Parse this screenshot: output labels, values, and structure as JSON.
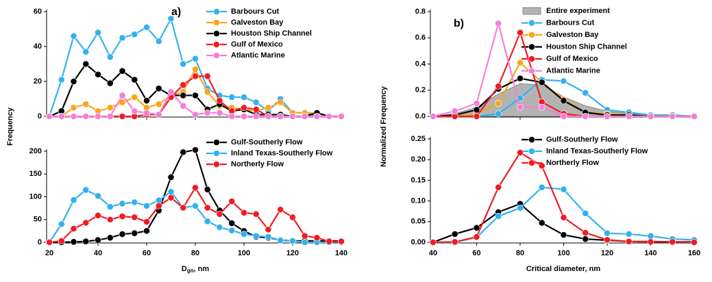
{
  "chart_data": [
    {
      "type": "line",
      "panel_label": "a)",
      "y_label": "Frequency",
      "x": [
        20,
        25,
        30,
        35,
        40,
        45,
        50,
        55,
        60,
        65,
        70,
        75,
        80,
        85,
        90,
        95,
        100,
        105,
        110,
        115,
        120,
        125,
        130,
        135,
        140
      ],
      "xlim": [
        20,
        140
      ],
      "xticks": [
        20,
        40,
        60,
        80,
        100,
        120,
        140
      ],
      "ylim": [
        0,
        60
      ],
      "yticks": [
        0,
        20,
        40,
        60
      ],
      "legend": "upper right",
      "series": [
        {
          "name": "Barbours Cut",
          "color": "#33b1ec",
          "values": [
            0,
            21,
            46,
            37,
            48,
            34,
            45,
            47,
            51,
            43,
            56,
            30,
            33,
            16,
            12,
            11,
            11,
            8,
            3,
            10,
            2,
            2,
            0,
            0,
            0
          ]
        },
        {
          "name": "Galveston Bay",
          "color": "#f9a51a",
          "values": [
            0,
            0,
            5,
            7,
            3,
            5,
            8,
            11,
            5,
            7,
            12,
            14,
            27,
            14,
            6,
            5,
            4,
            3,
            5,
            8,
            2,
            2,
            2,
            0,
            0
          ]
        },
        {
          "name": "Houston Ship Channel",
          "color": "#000000",
          "values": [
            0,
            3,
            20,
            30,
            24,
            19,
            26,
            21,
            9,
            16,
            12,
            12,
            12,
            4,
            7,
            3,
            4,
            1,
            1,
            1,
            0,
            0,
            2,
            0,
            0
          ]
        },
        {
          "name": "Gulf of Mexico",
          "color": "#ee1c24",
          "values": [
            0,
            0,
            0,
            0,
            0,
            0,
            0,
            0,
            1,
            1,
            11,
            18,
            23,
            23,
            9,
            3,
            5,
            4,
            0,
            0,
            0,
            0,
            0,
            0,
            0
          ]
        },
        {
          "name": "Atlantic Marine",
          "color": "#f47fd8",
          "values": [
            0,
            0,
            0,
            0,
            0,
            0,
            12,
            3,
            2,
            1,
            14,
            6,
            1,
            2,
            2,
            0,
            0,
            0,
            0,
            0,
            0,
            0,
            0,
            0,
            0
          ]
        }
      ]
    },
    {
      "type": "line",
      "x_label": {
        "main": "D",
        "sub": "gn",
        "rest": ", nm"
      },
      "x": [
        20,
        25,
        30,
        35,
        40,
        45,
        50,
        55,
        60,
        65,
        70,
        75,
        80,
        85,
        90,
        95,
        100,
        105,
        110,
        115,
        120,
        125,
        130,
        135,
        140
      ],
      "xlim": [
        20,
        140
      ],
      "xticks": [
        20,
        40,
        60,
        80,
        100,
        120,
        140
      ],
      "ylim": [
        0,
        200
      ],
      "yticks": [
        0,
        50,
        100,
        150,
        200
      ],
      "legend": "upper right",
      "series": [
        {
          "name": "Gulf-Southerly Flow",
          "color": "#000000",
          "values": [
            0,
            0,
            1,
            2,
            5,
            10,
            18,
            20,
            25,
            70,
            143,
            198,
            203,
            116,
            70,
            42,
            25,
            12,
            10,
            5,
            3,
            3,
            3,
            3,
            3
          ]
        },
        {
          "name": "Inland Texas-Southerly Flow",
          "color": "#33b1ec",
          "values": [
            0,
            40,
            93,
            115,
            102,
            78,
            85,
            88,
            80,
            92,
            111,
            76,
            80,
            46,
            33,
            26,
            18,
            14,
            12,
            4,
            3,
            0,
            0,
            0,
            1
          ]
        },
        {
          "name": "Northerly Flow",
          "color": "#ee1c24",
          "values": [
            0,
            3,
            30,
            43,
            59,
            50,
            57,
            55,
            45,
            80,
            98,
            76,
            120,
            76,
            62,
            90,
            65,
            62,
            28,
            72,
            55,
            14,
            10,
            2,
            2
          ]
        }
      ]
    },
    {
      "type": "line",
      "panel_label": "b)",
      "y_label": "Normalized Frequency",
      "x": [
        40,
        50,
        60,
        70,
        80,
        90,
        100,
        110,
        120,
        130,
        140,
        150,
        160
      ],
      "xlim": [
        40,
        160
      ],
      "xticks": [
        40,
        60,
        80,
        100,
        120,
        140,
        160
      ],
      "ylim": [
        0,
        0.8
      ],
      "yticks": [
        {
          "value": 0,
          "label": "0.0"
        },
        0.2,
        0.4,
        0.6,
        0.8
      ],
      "legend": "upper right",
      "series": [
        {
          "name": "Entire experiment",
          "color": "#b3b3b3",
          "style": "area",
          "values": [
            0,
            0.02,
            0.07,
            0.17,
            0.25,
            0.24,
            0.15,
            0.08,
            0.04,
            0.02,
            0.01,
            0.005,
            0
          ]
        },
        {
          "name": "Barbours Cut",
          "color": "#33b1ec",
          "values": [
            0,
            0,
            0,
            0.02,
            0.14,
            0.28,
            0.27,
            0.18,
            0.05,
            0.03,
            0.01,
            0.01,
            0
          ]
        },
        {
          "name": "Galveston Bay",
          "color": "#f9a51a",
          "values": [
            0,
            0,
            0.02,
            0.1,
            0.41,
            0.26,
            0.13,
            0.03,
            0.02,
            0.01,
            0,
            0,
            0
          ]
        },
        {
          "name": "Houston Ship Channel",
          "color": "#000000",
          "values": [
            0,
            0.01,
            0.05,
            0.21,
            0.29,
            0.26,
            0.12,
            0.03,
            0.01,
            0.01,
            0,
            0,
            0
          ]
        },
        {
          "name": "Gulf of Mexico",
          "color": "#ee1c24",
          "values": [
            0,
            0,
            0,
            0.23,
            0.64,
            0.11,
            0.02,
            0,
            0,
            0,
            0,
            0,
            0
          ]
        },
        {
          "name": "Atlantic Marine",
          "color": "#f47fd8",
          "values": [
            0,
            0.04,
            0.1,
            0.71,
            0.07,
            0.07,
            0,
            0,
            0,
            0,
            0,
            0,
            0
          ]
        }
      ]
    },
    {
      "type": "line",
      "x_label": "Critical diameter, nm",
      "x": [
        40,
        50,
        60,
        70,
        80,
        90,
        100,
        110,
        120,
        130,
        140,
        150,
        160
      ],
      "xlim": [
        40,
        160
      ],
      "xticks": [
        40,
        60,
        80,
        100,
        120,
        140,
        160
      ],
      "ylim": [
        0,
        0.25
      ],
      "yticks": [
        {
          "value": 0,
          "label": "0.00"
        },
        {
          "value": 0.05,
          "label": "0.05"
        },
        {
          "value": 0.1,
          "label": "0.10"
        },
        {
          "value": 0.15,
          "label": "0.15"
        },
        {
          "value": 0.2,
          "label": "0.20"
        },
        {
          "value": 0.25,
          "label": "0.25"
        }
      ],
      "legend": "upper right",
      "series": [
        {
          "name": "Gulf-Southerly Flow",
          "color": "#000000",
          "values": [
            0,
            0.02,
            0.035,
            0.073,
            0.093,
            0.047,
            0.018,
            0.008,
            0.005,
            0.002,
            0.002,
            0.001,
            0.001
          ]
        },
        {
          "name": "Inland Texas-Southerly Flow",
          "color": "#33b1ec",
          "values": [
            0,
            0,
            0.012,
            0.063,
            0.083,
            0.133,
            0.128,
            0.07,
            0.022,
            0.02,
            0.015,
            0.008,
            0.006
          ]
        },
        {
          "name": "Northerly Flow",
          "color": "#ee1c24",
          "values": [
            0,
            0.001,
            0.013,
            0.133,
            0.217,
            0.185,
            0.06,
            0.023,
            0.006,
            0.002,
            0.001,
            0.001,
            0
          ]
        }
      ]
    }
  ]
}
